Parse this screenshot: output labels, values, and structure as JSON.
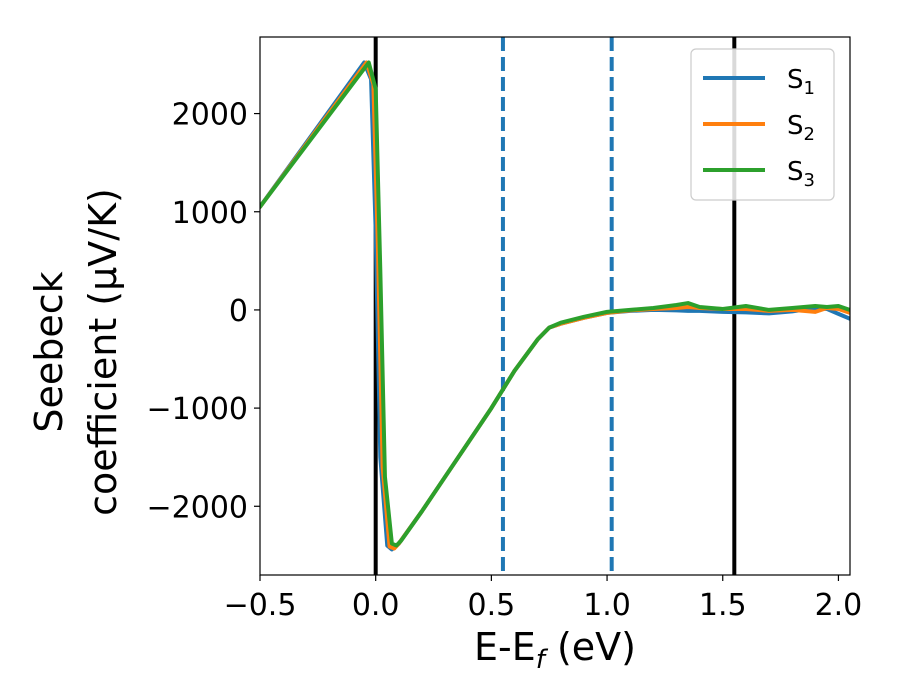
{
  "chart_data": {
    "type": "line",
    "title": "",
    "xlabel": {
      "main": "E-E",
      "sub": "f",
      "unit": " (eV)"
    },
    "ylabel": {
      "line1": "Seebeck",
      "line2": "coefficient  (μV/K)"
    },
    "xlim": [
      -0.5,
      2.05
    ],
    "ylim": [
      -2700,
      2780
    ],
    "x_ticks": [
      -0.5,
      0.0,
      0.5,
      1.0,
      1.5,
      2.0
    ],
    "x_tick_labels": [
      "−0.5",
      "0.0",
      "0.5",
      "1.0",
      "1.5",
      "2.0"
    ],
    "y_ticks": [
      -2000,
      -1000,
      0,
      1000,
      2000
    ],
    "y_tick_labels": [
      "−2000",
      "−1000",
      "0",
      "1000",
      "2000"
    ],
    "vertical_lines": [
      {
        "x": 0.0,
        "style": "solid",
        "color": "#000000"
      },
      {
        "x": 1.55,
        "style": "solid",
        "color": "#000000"
      },
      {
        "x": 0.55,
        "style": "dashed",
        "color": "#1f77b4"
      },
      {
        "x": 1.02,
        "style": "dashed",
        "color": "#1f77b4"
      }
    ],
    "series": [
      {
        "name": "S",
        "sub": "1",
        "color": "#1f77b4",
        "x": [
          -0.5,
          -0.05,
          -0.02,
          0.0,
          0.02,
          0.05,
          0.07,
          0.1,
          0.2,
          0.3,
          0.4,
          0.5,
          0.6,
          0.7,
          0.75,
          0.8,
          0.9,
          1.0,
          1.1,
          1.2,
          1.3,
          1.35,
          1.4,
          1.5,
          1.6,
          1.65,
          1.7,
          1.8,
          1.9,
          1.95,
          2.0,
          2.05
        ],
        "y": [
          1050,
          2520,
          2350,
          800,
          -1500,
          -2400,
          -2440,
          -2380,
          -2050,
          -1700,
          -1350,
          -1000,
          -620,
          -300,
          -180,
          -140,
          -80,
          -30,
          -10,
          0,
          -5,
          -10,
          -10,
          -20,
          -25,
          -30,
          -35,
          -15,
          20,
          10,
          -40,
          -90
        ]
      },
      {
        "name": "S",
        "sub": "2",
        "color": "#ff7f0e",
        "x": [
          -0.5,
          -0.04,
          -0.01,
          0.01,
          0.03,
          0.06,
          0.08,
          0.1,
          0.2,
          0.3,
          0.4,
          0.5,
          0.6,
          0.7,
          0.75,
          0.8,
          0.9,
          1.0,
          1.1,
          1.2,
          1.3,
          1.35,
          1.4,
          1.5,
          1.6,
          1.65,
          1.7,
          1.8,
          1.9,
          1.95,
          2.0,
          2.05
        ],
        "y": [
          1050,
          2520,
          2300,
          600,
          -1600,
          -2410,
          -2430,
          -2380,
          -2050,
          -1700,
          -1350,
          -1000,
          -620,
          -300,
          -180,
          -140,
          -80,
          -30,
          -5,
          10,
          20,
          30,
          20,
          10,
          10,
          0,
          -10,
          0,
          -20,
          20,
          10,
          -30
        ]
      },
      {
        "name": "S",
        "sub": "3",
        "color": "#2ca02c",
        "x": [
          -0.5,
          -0.03,
          0.0,
          0.02,
          0.04,
          0.07,
          0.09,
          0.11,
          0.2,
          0.3,
          0.4,
          0.5,
          0.6,
          0.7,
          0.75,
          0.8,
          0.9,
          1.0,
          1.1,
          1.2,
          1.3,
          1.35,
          1.4,
          1.5,
          1.6,
          1.65,
          1.7,
          1.8,
          1.9,
          1.95,
          2.0,
          2.05
        ],
        "y": [
          1050,
          2520,
          2250,
          400,
          -1700,
          -2380,
          -2400,
          -2350,
          -2050,
          -1700,
          -1350,
          -1000,
          -620,
          -300,
          -180,
          -130,
          -70,
          -20,
          0,
          20,
          50,
          70,
          30,
          10,
          40,
          20,
          0,
          20,
          40,
          30,
          40,
          0
        ]
      }
    ],
    "legend": {
      "position": "top-right"
    }
  }
}
